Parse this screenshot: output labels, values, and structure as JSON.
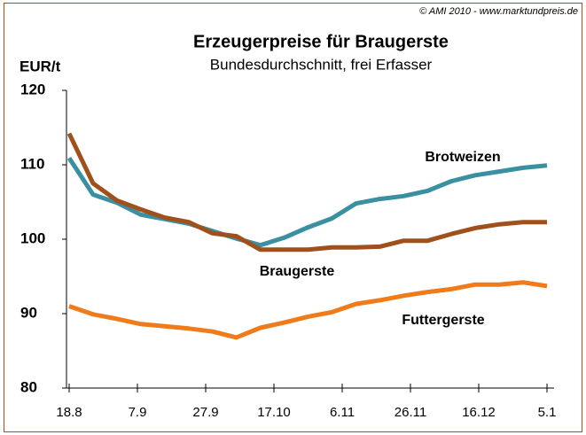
{
  "chart_data": {
    "type": "line",
    "title": "Erzeugerpreise für Braugerste",
    "subtitle": "Bundesdurchschnitt, frei Erfasser",
    "y_label": "EUR/t",
    "source": "© AMI 2010 - www.marktundpreis.de",
    "x": [
      "18.8",
      "25.8",
      "1.9",
      "8.9",
      "15.9",
      "22.9",
      "29.9",
      "6.10",
      "13.10",
      "20.10",
      "27.10",
      "3.11",
      "10.11",
      "17.11",
      "24.11",
      "1.12",
      "8.12",
      "15.12",
      "22.12",
      "29.12",
      "5.1"
    ],
    "xlim": [
      "18.8",
      "5.1"
    ],
    "xticks": [
      "18.8",
      "7.9",
      "27.9",
      "17.10",
      "6.11",
      "26.11",
      "16.12",
      "5.1"
    ],
    "ylim": [
      80,
      120
    ],
    "yticks": [
      80,
      90,
      100,
      110,
      120
    ],
    "series": [
      {
        "name": "Brotweizen",
        "color": "#3a8fa0",
        "values": [
          110.9,
          106.0,
          104.9,
          103.3,
          102.7,
          102.1,
          101.1,
          100.1,
          99.2,
          100.2,
          101.6,
          102.8,
          104.8,
          105.4,
          105.8,
          106.5,
          107.8,
          108.6,
          109.1,
          109.6,
          109.9
        ]
      },
      {
        "name": "Braugerste",
        "color": "#a0501a",
        "values": [
          114.2,
          107.5,
          105.2,
          104.0,
          102.9,
          102.3,
          100.8,
          100.4,
          98.6,
          98.6,
          98.6,
          98.9,
          98.9,
          99.0,
          99.8,
          99.8,
          100.7,
          101.5,
          102.0,
          102.3,
          102.3
        ]
      },
      {
        "name": "Futtergerste",
        "color": "#f07b1a",
        "values": [
          91.0,
          89.9,
          89.3,
          88.6,
          88.3,
          88.0,
          87.6,
          86.8,
          88.1,
          88.8,
          89.6,
          90.2,
          91.3,
          91.8,
          92.4,
          92.9,
          93.3,
          93.9,
          93.9,
          94.2,
          93.7
        ]
      }
    ]
  }
}
